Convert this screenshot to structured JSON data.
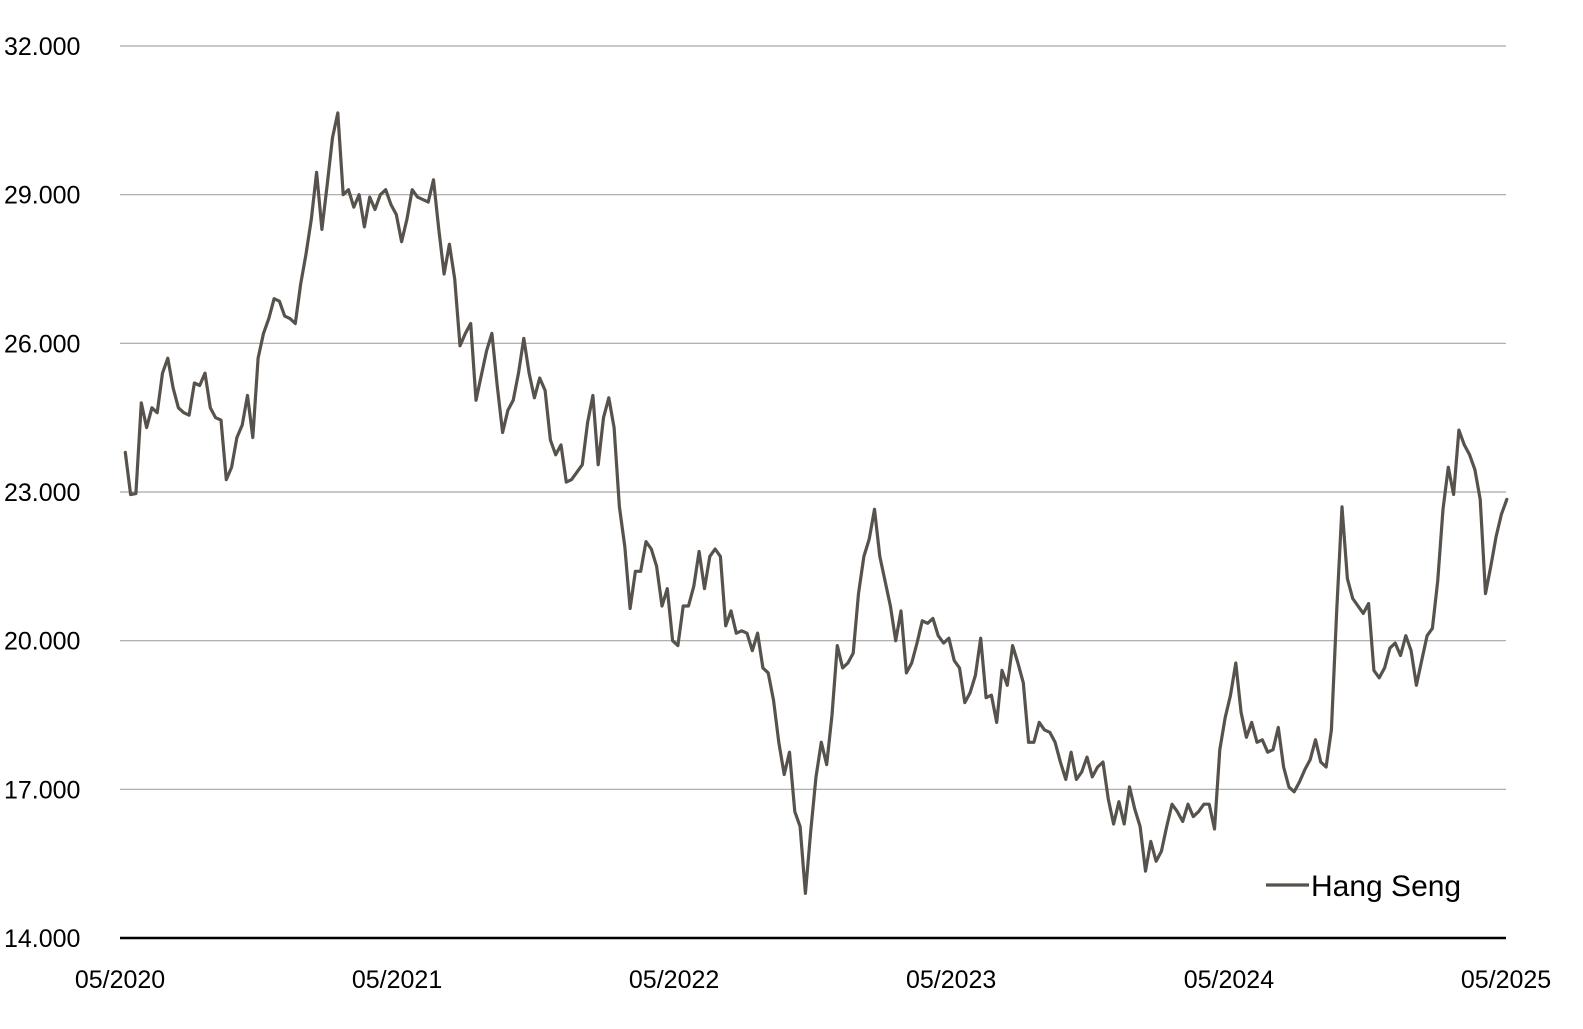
{
  "chart_data": {
    "type": "line",
    "title": "",
    "xlabel": "",
    "ylabel": "",
    "ylim": [
      14000,
      32000
    ],
    "y_ticks": [
      14000,
      17000,
      20000,
      23000,
      26000,
      29000,
      32000
    ],
    "y_tick_labels": [
      "14.000",
      "17.000",
      "20.000",
      "23.000",
      "26.000",
      "29.000",
      "32.000"
    ],
    "x_range": [
      "2020-05",
      "2025-05"
    ],
    "x_ticks": [
      "2020-05",
      "2021-05",
      "2022-05",
      "2023-05",
      "2024-05",
      "2025-05"
    ],
    "x_tick_labels": [
      "05/2020",
      "05/2021",
      "05/2022",
      "05/2023",
      "05/2024",
      "05/2025"
    ],
    "grid": "horizontal",
    "legend_position": "bottom-right",
    "legend": [
      "Hang Seng"
    ],
    "series": [
      {
        "name": "Hang Seng",
        "color": "#57524c",
        "x": [
          "2020-05-08",
          "2020-05-15",
          "2020-05-22",
          "2020-05-29",
          "2020-06-05",
          "2020-06-12",
          "2020-06-19",
          "2020-06-26",
          "2020-07-03",
          "2020-07-10",
          "2020-07-17",
          "2020-07-24",
          "2020-07-31",
          "2020-08-07",
          "2020-08-14",
          "2020-08-21",
          "2020-08-28",
          "2020-09-04",
          "2020-09-11",
          "2020-09-18",
          "2020-09-25",
          "2020-10-02",
          "2020-10-09",
          "2020-10-16",
          "2020-10-23",
          "2020-10-30",
          "2020-11-06",
          "2020-11-13",
          "2020-11-20",
          "2020-11-27",
          "2020-12-04",
          "2020-12-11",
          "2020-12-18",
          "2020-12-25",
          "2021-01-01",
          "2021-01-08",
          "2021-01-15",
          "2021-01-22",
          "2021-01-29",
          "2021-02-05",
          "2021-02-12",
          "2021-02-19",
          "2021-02-26",
          "2021-03-05",
          "2021-03-12",
          "2021-03-19",
          "2021-03-26",
          "2021-04-02",
          "2021-04-09",
          "2021-04-16",
          "2021-04-23",
          "2021-04-30",
          "2021-05-07",
          "2021-05-14",
          "2021-05-21",
          "2021-05-28",
          "2021-06-04",
          "2021-06-11",
          "2021-06-18",
          "2021-06-25",
          "2021-07-02",
          "2021-07-09",
          "2021-07-16",
          "2021-07-23",
          "2021-07-30",
          "2021-08-06",
          "2021-08-13",
          "2021-08-20",
          "2021-08-27",
          "2021-09-03",
          "2021-09-10",
          "2021-09-17",
          "2021-09-24",
          "2021-10-01",
          "2021-10-08",
          "2021-10-15",
          "2021-10-22",
          "2021-10-29",
          "2021-11-05",
          "2021-11-12",
          "2021-11-19",
          "2021-11-26",
          "2021-12-03",
          "2021-12-10",
          "2021-12-17",
          "2021-12-24",
          "2021-12-31",
          "2022-01-07",
          "2022-01-14",
          "2022-01-21",
          "2022-01-28",
          "2022-02-04",
          "2022-02-11",
          "2022-02-18",
          "2022-02-25",
          "2022-03-04",
          "2022-03-11",
          "2022-03-18",
          "2022-03-25",
          "2022-04-01",
          "2022-04-08",
          "2022-04-15",
          "2022-04-22",
          "2022-04-29",
          "2022-05-06",
          "2022-05-13",
          "2022-05-20",
          "2022-05-27",
          "2022-06-03",
          "2022-06-10",
          "2022-06-17",
          "2022-06-24",
          "2022-07-01",
          "2022-07-08",
          "2022-07-15",
          "2022-07-22",
          "2022-07-29",
          "2022-08-05",
          "2022-08-12",
          "2022-08-19",
          "2022-08-26",
          "2022-09-02",
          "2022-09-09",
          "2022-09-16",
          "2022-09-23",
          "2022-09-30",
          "2022-10-07",
          "2022-10-14",
          "2022-10-21",
          "2022-10-28",
          "2022-11-04",
          "2022-11-11",
          "2022-11-18",
          "2022-11-25",
          "2022-12-02",
          "2022-12-09",
          "2022-12-16",
          "2022-12-23",
          "2022-12-30",
          "2023-01-06",
          "2023-01-13",
          "2023-01-20",
          "2023-01-27",
          "2023-02-03",
          "2023-02-10",
          "2023-02-17",
          "2023-02-24",
          "2023-03-03",
          "2023-03-10",
          "2023-03-17",
          "2023-03-24",
          "2023-03-31",
          "2023-04-07",
          "2023-04-14",
          "2023-04-21",
          "2023-04-28",
          "2023-05-05",
          "2023-05-12",
          "2023-05-19",
          "2023-05-26",
          "2023-06-02",
          "2023-06-09",
          "2023-06-16",
          "2023-06-23",
          "2023-06-30",
          "2023-07-07",
          "2023-07-14",
          "2023-07-21",
          "2023-07-28",
          "2023-08-04",
          "2023-08-11",
          "2023-08-18",
          "2023-08-25",
          "2023-09-01",
          "2023-09-08",
          "2023-09-15",
          "2023-09-22",
          "2023-09-29",
          "2023-10-06",
          "2023-10-13",
          "2023-10-20",
          "2023-10-27",
          "2023-11-03",
          "2023-11-10",
          "2023-11-17",
          "2023-11-24",
          "2023-12-01",
          "2023-12-08",
          "2023-12-15",
          "2023-12-22",
          "2023-12-29",
          "2024-01-05",
          "2024-01-12",
          "2024-01-19",
          "2024-01-26",
          "2024-02-02",
          "2024-02-09",
          "2024-02-16",
          "2024-02-23",
          "2024-03-01",
          "2024-03-08",
          "2024-03-15",
          "2024-03-22",
          "2024-03-29",
          "2024-04-05",
          "2024-04-12",
          "2024-04-19",
          "2024-04-26",
          "2024-05-03",
          "2024-05-10",
          "2024-05-17",
          "2024-05-24",
          "2024-05-31",
          "2024-06-07",
          "2024-06-14",
          "2024-06-21",
          "2024-06-28",
          "2024-07-05",
          "2024-07-12",
          "2024-07-19",
          "2024-07-26",
          "2024-08-02",
          "2024-08-09",
          "2024-08-16",
          "2024-08-23",
          "2024-08-30",
          "2024-09-06",
          "2024-09-13",
          "2024-09-20",
          "2024-09-27",
          "2024-10-04",
          "2024-10-11",
          "2024-10-18",
          "2024-10-25",
          "2024-11-01",
          "2024-11-08",
          "2024-11-15",
          "2024-11-22",
          "2024-11-29",
          "2024-12-06",
          "2024-12-13",
          "2024-12-20",
          "2024-12-27",
          "2025-01-03",
          "2025-01-10",
          "2025-01-17",
          "2025-01-24",
          "2025-01-31",
          "2025-02-07",
          "2025-02-14",
          "2025-02-21",
          "2025-02-28",
          "2025-03-07",
          "2025-03-14",
          "2025-03-21",
          "2025-03-28",
          "2025-04-04",
          "2025-04-11",
          "2025-04-18",
          "2025-04-25",
          "2025-05-02"
        ],
        "values": [
          23800,
          22950,
          22970,
          24800,
          24300,
          24700,
          24600,
          25400,
          25700,
          25100,
          24700,
          24600,
          24550,
          25200,
          25150,
          25400,
          24700,
          24500,
          24450,
          23250,
          23500,
          24100,
          24350,
          24950,
          24100,
          25700,
          26200,
          26500,
          26900,
          26850,
          26550,
          26500,
          26400,
          27200,
          27800,
          28500,
          29450,
          28300,
          29200,
          30150,
          30650,
          29000,
          29100,
          28750,
          29000,
          28350,
          28950,
          28700,
          29000,
          29100,
          28800,
          28600,
          28050,
          28500,
          29100,
          28950,
          28900,
          28850,
          29300,
          28300,
          27400,
          28000,
          27300,
          25950,
          26200,
          26400,
          24850,
          25350,
          25850,
          26200,
          25150,
          24200,
          24650,
          24850,
          25400,
          26100,
          25400,
          24900,
          25300,
          25050,
          24050,
          23750,
          23950,
          23200,
          23250,
          23400,
          23550,
          24400,
          24950,
          23550,
          24500,
          24900,
          24300,
          22700,
          21900,
          20650,
          21400,
          21400,
          22000,
          21850,
          21500,
          20700,
          21050,
          20000,
          19900,
          20700,
          20700,
          21100,
          21800,
          21050,
          21700,
          21850,
          21700,
          20300,
          20600,
          20150,
          20200,
          20150,
          19800,
          20150,
          19450,
          19350,
          18800,
          17950,
          17300,
          17750,
          16550,
          16250,
          14900,
          16150,
          17250,
          17950,
          17500,
          18500,
          19900,
          19450,
          19550,
          19750,
          20950,
          21700,
          22050,
          22650,
          21700,
          21200,
          20700,
          20000,
          20600,
          19350,
          19550,
          19950,
          20400,
          20350,
          20450,
          20100,
          19950,
          20050,
          19600,
          19450,
          18750,
          18950,
          19300,
          20050,
          18850,
          18900,
          18350,
          19400,
          19100,
          19900,
          19550,
          19150,
          17950,
          17950,
          18350,
          18200,
          18150,
          17950,
          17550,
          17200,
          17750,
          17200,
          17350,
          17650,
          17250,
          17450,
          17550,
          16800,
          16300,
          16750,
          16300,
          17050,
          16600,
          16250,
          15350,
          15950,
          15550,
          15750,
          16250,
          16700,
          16550,
          16350,
          16700,
          16450,
          16550,
          16700,
          16700,
          16200,
          17800,
          18450,
          18900,
          19550,
          18550,
          18050,
          18350,
          17950,
          18000,
          17750,
          17800,
          18250,
          17450,
          17050,
          16950,
          17150,
          17400,
          17600,
          18000,
          17550,
          17450,
          18200,
          20600,
          22700,
          21250,
          20850,
          20700,
          20550,
          20750,
          19400,
          19250,
          19450,
          19850,
          19950,
          19700,
          20100,
          19800,
          19100,
          19600,
          20100,
          20250,
          21200,
          22650,
          23500,
          22950,
          24250,
          23950,
          23750,
          23450,
          22850,
          20950,
          21500,
          22100,
          22550,
          22850
        ]
      }
    ]
  }
}
